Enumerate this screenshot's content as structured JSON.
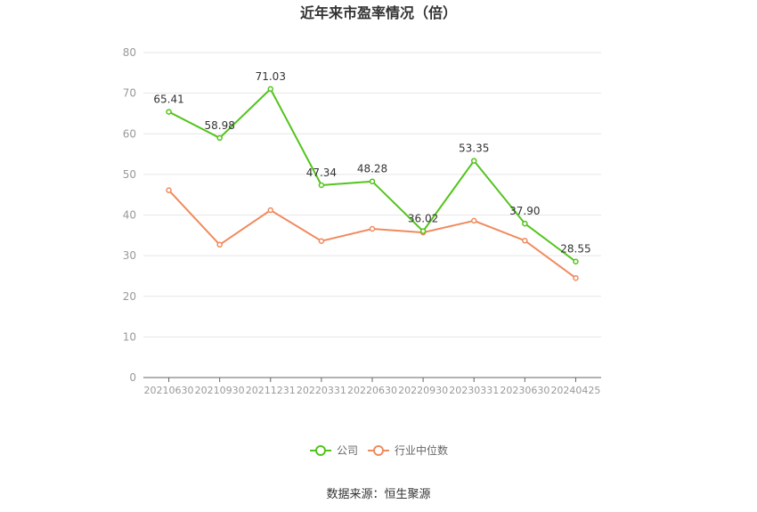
{
  "title": "近年来市盈率情况（倍）",
  "source": "数据来源：恒生聚源",
  "chart_data": {
    "type": "line",
    "title": "近年来市盈率情况（倍）",
    "categories": [
      "20210630",
      "20210930",
      "20211231",
      "20220331",
      "20220630",
      "20220930",
      "20230331",
      "20230630",
      "20240425"
    ],
    "ylim": [
      0,
      80
    ],
    "yticks": [
      0,
      10,
      20,
      30,
      40,
      50,
      60,
      70,
      80
    ],
    "grid": true,
    "legend_position": "bottom",
    "series": [
      {
        "name": "公司",
        "color": "#52c41a",
        "values": [
          65.41,
          58.98,
          71.03,
          47.34,
          48.28,
          36.02,
          53.35,
          37.9,
          28.55
        ],
        "labels": [
          "65.41",
          "58.98",
          "71.03",
          "47.34",
          "48.28",
          "36.02",
          "53.35",
          "37.90",
          "28.55"
        ],
        "show_labels": true
      },
      {
        "name": "行业中位数",
        "color": "#f08a5d",
        "values": [
          46.1,
          32.7,
          41.2,
          33.6,
          36.6,
          35.7,
          38.6,
          33.7,
          24.5
        ],
        "show_labels": false
      }
    ]
  }
}
